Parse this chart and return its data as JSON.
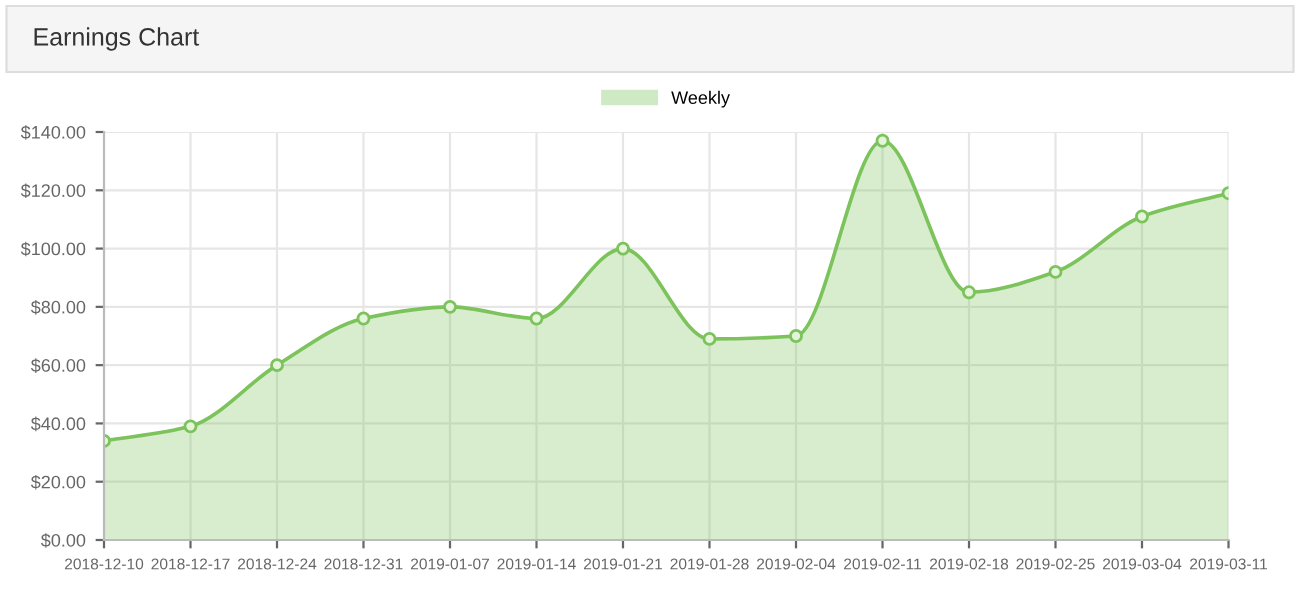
{
  "chart_data": {
    "type": "area",
    "title": "Earnings Chart",
    "categories": [
      "2018-12-10",
      "2018-12-17",
      "2018-12-24",
      "2018-12-31",
      "2019-01-07",
      "2019-01-14",
      "2019-01-21",
      "2019-01-28",
      "2019-02-04",
      "2019-02-11",
      "2019-02-18",
      "2019-02-25",
      "2019-03-04",
      "2019-03-11"
    ],
    "series": [
      {
        "name": "Weekly",
        "color": "#7cc35c",
        "values": [
          34,
          39,
          60,
          76,
          80,
          76,
          100,
          69,
          70,
          137,
          85,
          92,
          111,
          119
        ]
      }
    ],
    "ylim": [
      0,
      140
    ],
    "yticks": [
      {
        "value": 0,
        "label": "$0.00"
      },
      {
        "value": 20,
        "label": "$20.00"
      },
      {
        "value": 40,
        "label": "$40.00"
      },
      {
        "value": 60,
        "label": "$60.00"
      },
      {
        "value": 80,
        "label": "$80.00"
      },
      {
        "value": 100,
        "label": "$100.00"
      },
      {
        "value": 120,
        "label": "$120.00"
      },
      {
        "value": 140,
        "label": "$140.00"
      }
    ],
    "grid": true,
    "legend": "top",
    "marker": "circle"
  }
}
